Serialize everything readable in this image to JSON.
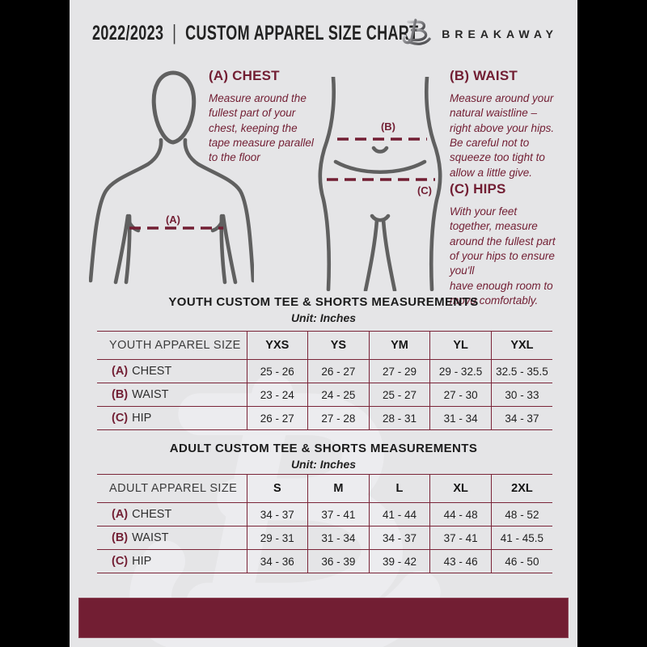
{
  "colors": {
    "maroon": "#721E33",
    "line": "#7A2438",
    "figure": "#606060",
    "page-bg": "#E5E5E7",
    "black-bar": "#000000",
    "watermark": "#EFEFF2"
  },
  "header": {
    "year": "2022/2023",
    "separator": "|",
    "title": "CUSTOM APPAREL SIZE CHART",
    "brand": "BREAKAWAY"
  },
  "diagram": {
    "chest": {
      "heading": "(A) CHEST",
      "body": "Measure around the\nfullest part of your\nchest, keeping the\ntape measure parallel\nto the floor",
      "marker": "(A)"
    },
    "waist": {
      "heading": "(B) WAIST",
      "body": "Measure around your\nnatural waistline –\nright above your hips.\nBe careful not to\nsqueeze too tight to\nallow a little give.",
      "marker": "(B)"
    },
    "hips": {
      "heading": "(C) HIPS",
      "body": "With your feet\ntogether, measure\naround the fullest part\nof your hips to ensure\nyou'll\nhave enough room to\nmove comfortably.",
      "marker": "(C)"
    }
  },
  "youth_section": {
    "title": "YOUTH CUSTOM TEE & SHORTS MEASUREMENTS",
    "unit": "Unit: Inches"
  },
  "youth_table": {
    "name_header": "YOUTH APPAREL SIZE",
    "size_headers": [
      "YXS",
      "YS",
      "YM",
      "YL",
      "YXL"
    ],
    "rows": [
      {
        "prefix": "(A)",
        "label": "CHEST",
        "values": [
          "25 - 26",
          "26 - 27",
          "27 - 29",
          "29 - 32.5",
          "32.5 - 35.5"
        ]
      },
      {
        "prefix": "(B)",
        "label": "WAIST",
        "values": [
          "23 - 24",
          "24 - 25",
          "25 - 27",
          "27 - 30",
          "30 - 33"
        ]
      },
      {
        "prefix": "(C)",
        "label": "HIP",
        "values": [
          "26 - 27",
          "27 - 28",
          "28 - 31",
          "31 - 34",
          "34 - 37"
        ]
      }
    ]
  },
  "adult_section": {
    "title": "ADULT CUSTOM TEE & SHORTS MEASUREMENTS",
    "unit": "Unit: Inches"
  },
  "adult_table": {
    "name_header": "ADULT APPAREL SIZE",
    "size_headers": [
      "S",
      "M",
      "L",
      "XL",
      "2XL"
    ],
    "rows": [
      {
        "prefix": "(A)",
        "label": "CHEST",
        "values": [
          "34 - 37",
          "37 - 41",
          "41 - 44",
          "44 - 48",
          "48 - 52"
        ]
      },
      {
        "prefix": "(B)",
        "label": "WAIST",
        "values": [
          "29 - 31",
          "31 - 34",
          "34 - 37",
          "37 - 41",
          "41 - 45.5"
        ]
      },
      {
        "prefix": "(C)",
        "label": "HIP",
        "values": [
          "34 - 36",
          "36 - 39",
          "39 - 42",
          "43 - 46",
          "46 - 50"
        ]
      }
    ]
  }
}
